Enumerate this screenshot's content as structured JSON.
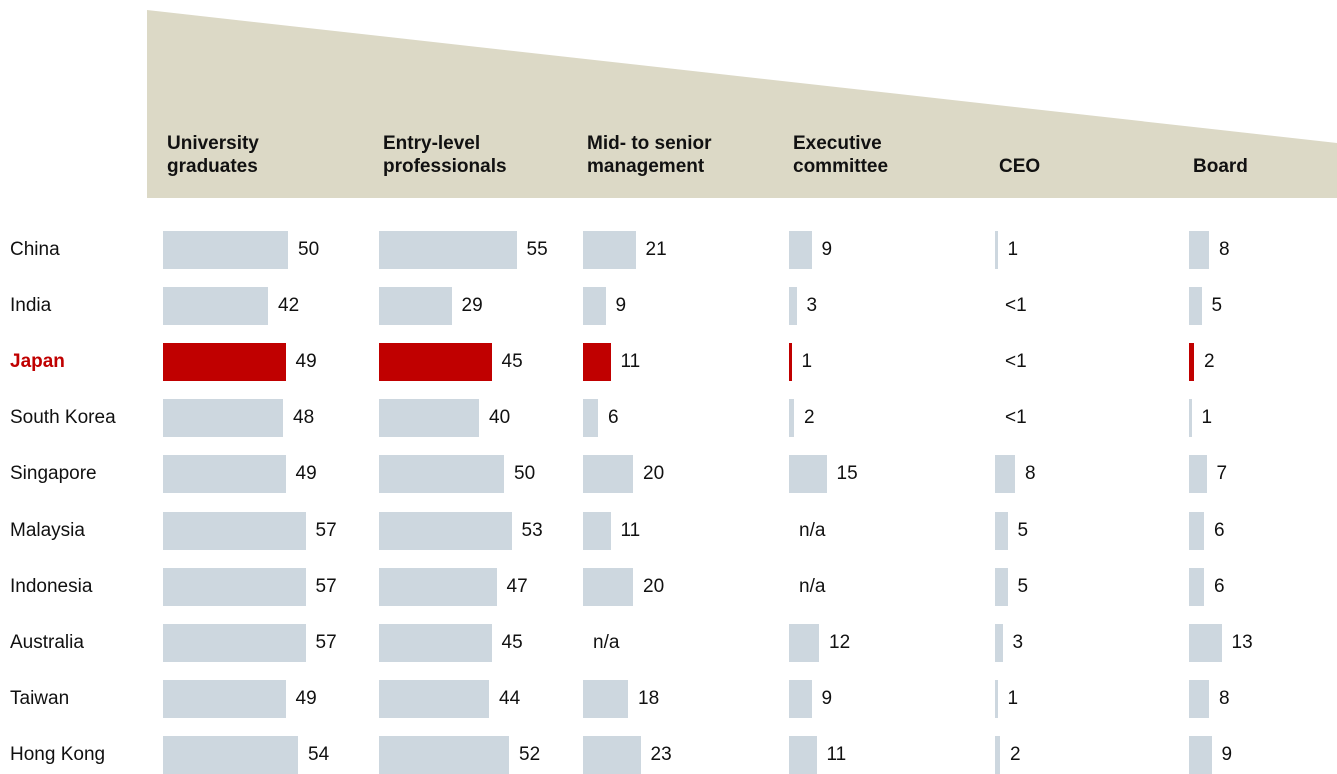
{
  "chart_data": {
    "type": "bar-table",
    "categories": [
      "China",
      "India",
      "Japan",
      "South Korea",
      "Singapore",
      "Malaysia",
      "Indonesia",
      "Australia",
      "Taiwan",
      "Hong Kong"
    ],
    "highlight": "Japan",
    "color": "#cdd7df",
    "highlight_color": "#c00000",
    "series": [
      {
        "name": "University graduates",
        "values": [
          50,
          42,
          49,
          48,
          49,
          57,
          57,
          57,
          49,
          54
        ]
      },
      {
        "name": "Entry-level professionals",
        "values": [
          55,
          29,
          45,
          40,
          50,
          53,
          47,
          45,
          44,
          52
        ]
      },
      {
        "name": "Mid- to senior management",
        "values": [
          21,
          9,
          11,
          6,
          20,
          11,
          20,
          null,
          18,
          23
        ],
        "value_labels": [
          null,
          null,
          null,
          null,
          null,
          null,
          null,
          "n/a",
          null,
          null
        ]
      },
      {
        "name": "Executive committee",
        "values": [
          9,
          3,
          1,
          2,
          15,
          null,
          null,
          12,
          9,
          11
        ],
        "value_labels": [
          null,
          null,
          null,
          null,
          null,
          "n/a",
          "n/a",
          null,
          null,
          null
        ]
      },
      {
        "name": "CEO",
        "values": [
          1,
          null,
          null,
          null,
          8,
          5,
          5,
          3,
          1,
          2
        ],
        "value_labels": [
          null,
          "<1",
          "<1",
          "<1",
          null,
          null,
          null,
          null,
          null,
          null
        ]
      },
      {
        "name": "Board",
        "values": [
          8,
          5,
          2,
          1,
          7,
          6,
          6,
          13,
          8,
          9
        ]
      }
    ]
  }
}
